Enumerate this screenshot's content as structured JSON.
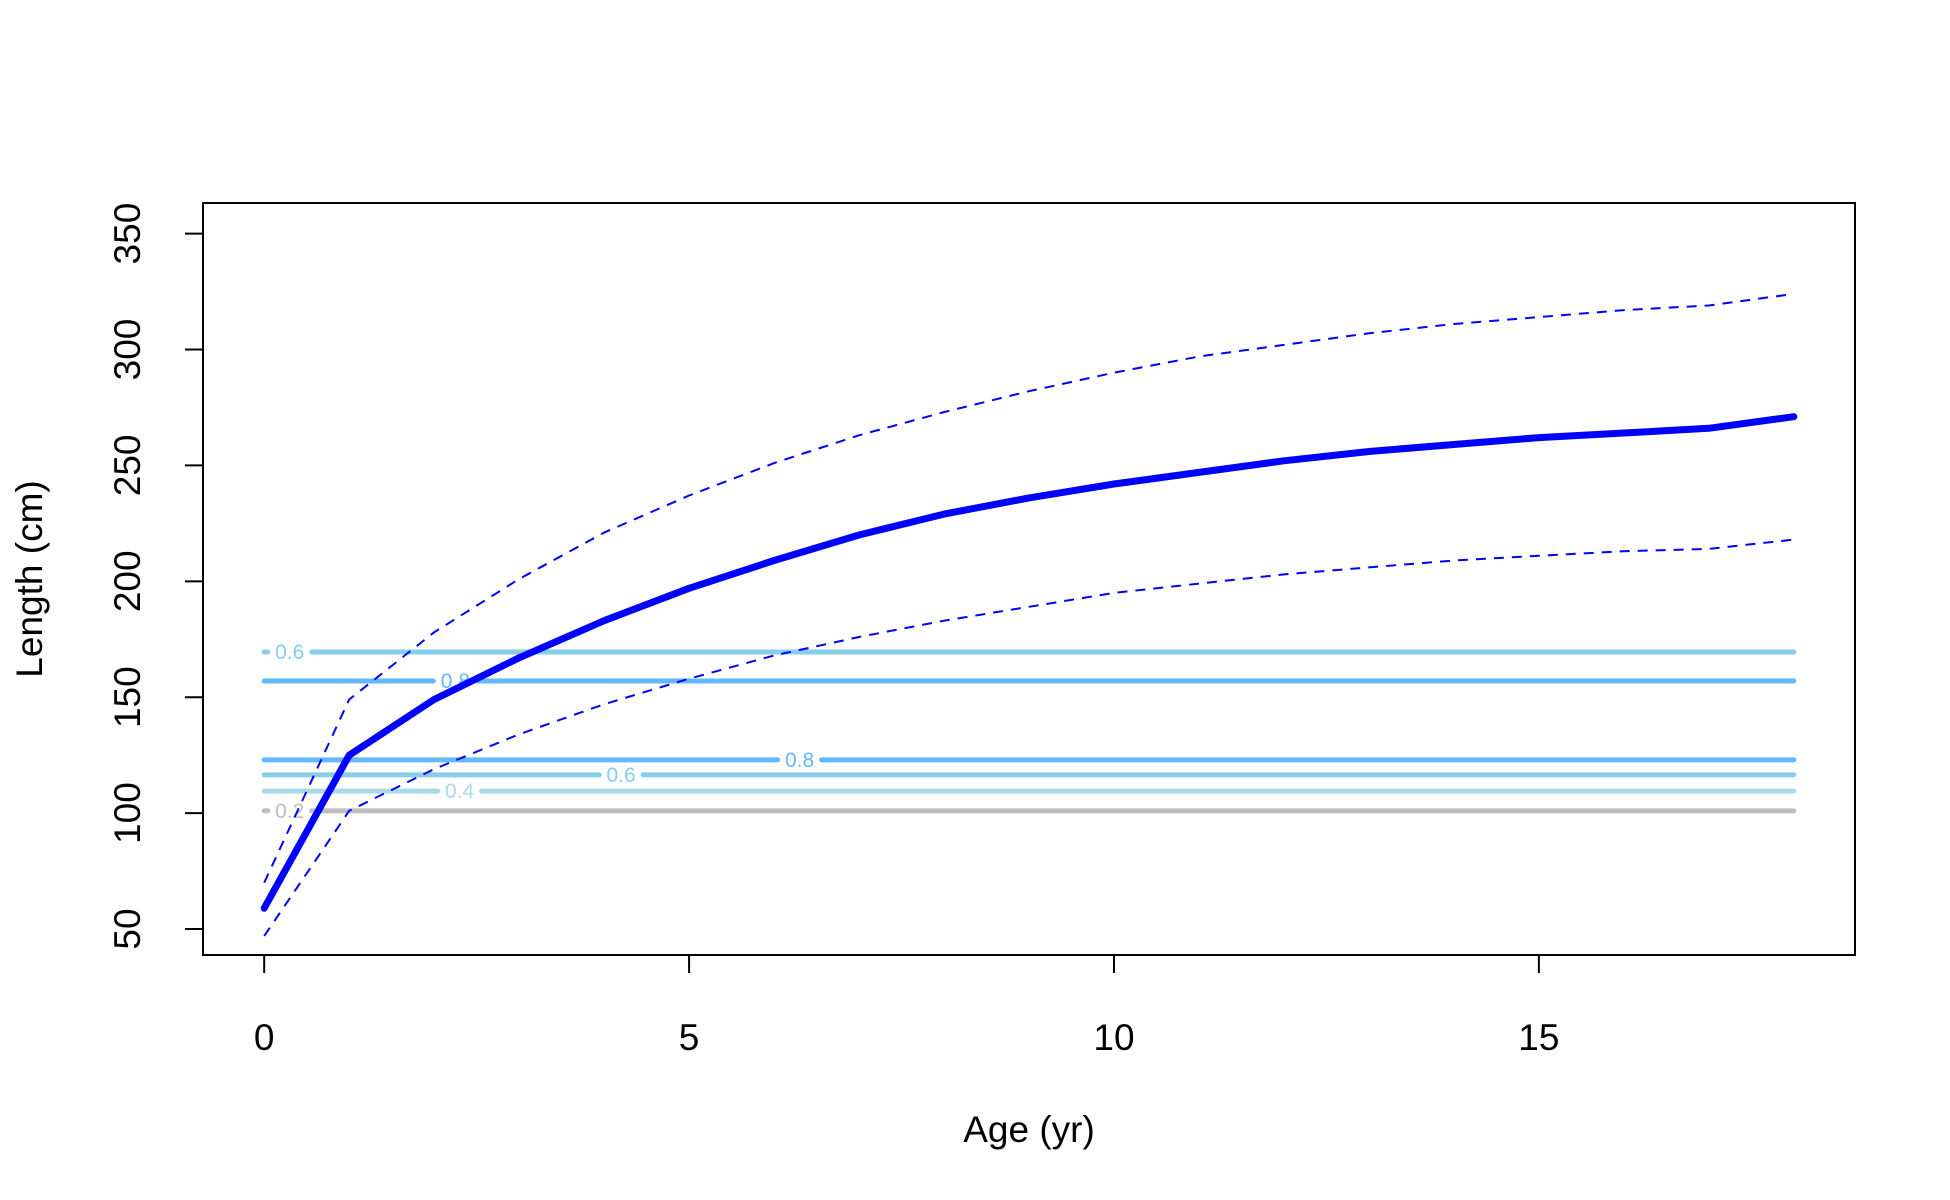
{
  "chart_data": {
    "type": "line",
    "title": "",
    "xlabel": "Age (yr)",
    "ylabel": "Length (cm)",
    "xlim": [
      -0.72,
      18.72
    ],
    "ylim": [
      38.8,
      363.2
    ],
    "xticks": [
      0,
      5,
      10,
      15
    ],
    "yticks": [
      50,
      100,
      150,
      200,
      250,
      300,
      350
    ],
    "xtick_labels": [
      "0",
      "5",
      "10",
      "15"
    ],
    "ytick_labels": [
      "50",
      "100",
      "150",
      "200",
      "250",
      "300",
      "350"
    ],
    "grid": false,
    "legend": "none",
    "series": [
      {
        "role": "mean",
        "color": "#0000ff",
        "style": "solid",
        "x": [
          0,
          1,
          2,
          3,
          4,
          5,
          6,
          7,
          8,
          9,
          10,
          11,
          12,
          13,
          14,
          15,
          16,
          17,
          18
        ],
        "y": [
          59,
          125,
          149,
          167,
          183,
          197,
          209,
          220,
          229,
          236,
          242,
          247,
          252,
          256,
          259,
          262,
          264,
          266,
          271
        ]
      },
      {
        "role": "upper-bound",
        "color": "#0000ff",
        "style": "dashed",
        "x": [
          0,
          1,
          2,
          3,
          4,
          5,
          6,
          7,
          8,
          9,
          10,
          11,
          12,
          13,
          14,
          15,
          16,
          17,
          18
        ],
        "y": [
          70,
          149,
          178,
          201,
          221,
          237,
          251,
          263,
          273,
          282,
          290,
          297,
          302,
          307,
          311,
          314,
          317,
          319,
          324
        ]
      },
      {
        "role": "lower-bound",
        "color": "#0000ff",
        "style": "dashed",
        "x": [
          0,
          1,
          2,
          3,
          4,
          5,
          6,
          7,
          8,
          9,
          10,
          11,
          12,
          13,
          14,
          15,
          16,
          17,
          18
        ],
        "y": [
          47,
          101,
          119,
          134,
          147,
          158,
          168,
          176,
          183,
          189,
          195,
          199,
          203,
          206,
          209,
          211,
          213,
          214,
          218
        ]
      }
    ],
    "contours": [
      {
        "level": 169.5,
        "label": "0.6",
        "color": "#87ceeb",
        "label_x": 0.3
      },
      {
        "level": 157,
        "label": "0.8",
        "color": "#63b8ff",
        "label_x": 2.25
      },
      {
        "level": 123,
        "label": "0.8",
        "color": "#63b8ff",
        "label_x": 6.3
      },
      {
        "level": 116.5,
        "label": "0.6",
        "color": "#87ceeb",
        "label_x": 4.2
      },
      {
        "level": 109.5,
        "label": "0.4",
        "color": "#add8e6",
        "label_x": 2.3
      },
      {
        "level": 101,
        "label": "0.2",
        "color": "#bebebe",
        "label_x": 0.3
      }
    ]
  }
}
